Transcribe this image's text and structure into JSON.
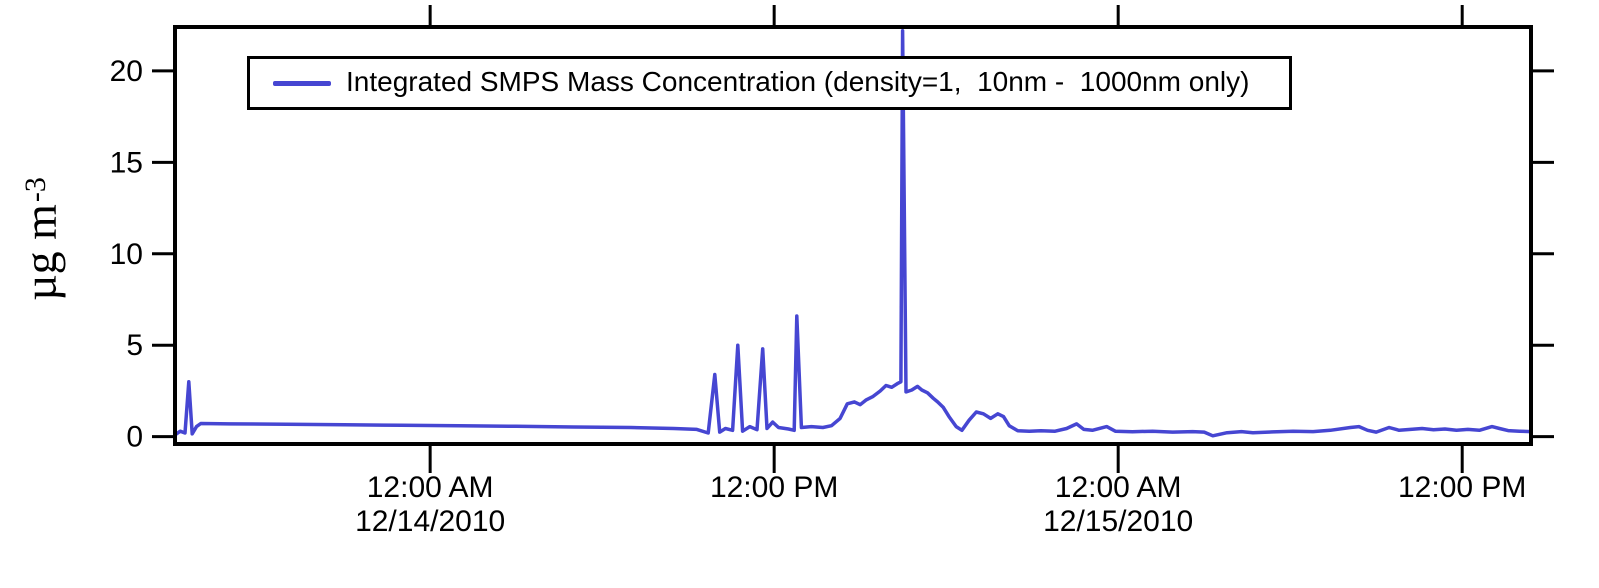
{
  "chart_data": {
    "type": "line",
    "title": "",
    "legend": {
      "label": "Integrated SMPS Mass Concentration (density=1,  10nm -  1000nm only)",
      "position": "top-inside",
      "border": true
    },
    "line_color": "#4646D2",
    "axis_color": "#000000",
    "background_color": "#FFFFFF",
    "grid": false,
    "ylabel": {
      "text": "µg m",
      "exponent": "-3"
    },
    "ylim": [
      -0.4,
      22.4
    ],
    "yticks": [
      0,
      5,
      10,
      15,
      20
    ],
    "x_unit": "hours since 12/14/2010 12:00 AM",
    "xlim_hours": [
      -8.9,
      38.4
    ],
    "xticks": [
      {
        "hours": 0,
        "time": "12:00 AM",
        "date": "12/14/2010"
      },
      {
        "hours": 12,
        "time": "12:00 PM",
        "date": ""
      },
      {
        "hours": 24,
        "time": "12:00 AM",
        "date": "12/15/2010"
      },
      {
        "hours": 36,
        "time": "12:00 PM",
        "date": ""
      }
    ],
    "mirror_axes": true,
    "points": [
      [
        -8.9,
        0.1
      ],
      [
        -8.72,
        0.3
      ],
      [
        -8.55,
        0.2
      ],
      [
        -8.42,
        3.0
      ],
      [
        -8.3,
        0.15
      ],
      [
        -8.15,
        0.55
      ],
      [
        -8.0,
        0.72
      ],
      [
        -7.0,
        0.7
      ],
      [
        -5.0,
        0.68
      ],
      [
        -3.0,
        0.65
      ],
      [
        -1.0,
        0.62
      ],
      [
        1.0,
        0.6
      ],
      [
        3.0,
        0.57
      ],
      [
        5.0,
        0.53
      ],
      [
        7.0,
        0.5
      ],
      [
        8.5,
        0.45
      ],
      [
        9.3,
        0.4
      ],
      [
        9.7,
        0.2
      ],
      [
        9.93,
        3.4
      ],
      [
        10.1,
        0.25
      ],
      [
        10.3,
        0.45
      ],
      [
        10.55,
        0.35
      ],
      [
        10.73,
        5.0
      ],
      [
        10.9,
        0.3
      ],
      [
        11.15,
        0.55
      ],
      [
        11.4,
        0.38
      ],
      [
        11.6,
        4.8
      ],
      [
        11.75,
        0.45
      ],
      [
        11.95,
        0.8
      ],
      [
        12.15,
        0.5
      ],
      [
        12.5,
        0.42
      ],
      [
        12.7,
        0.35
      ],
      [
        12.79,
        6.6
      ],
      [
        12.95,
        0.5
      ],
      [
        13.3,
        0.55
      ],
      [
        13.7,
        0.5
      ],
      [
        14.0,
        0.6
      ],
      [
        14.3,
        1.0
      ],
      [
        14.55,
        1.8
      ],
      [
        14.8,
        1.9
      ],
      [
        15.0,
        1.75
      ],
      [
        15.2,
        2.0
      ],
      [
        15.45,
        2.2
      ],
      [
        15.7,
        2.5
      ],
      [
        15.9,
        2.8
      ],
      [
        16.1,
        2.7
      ],
      [
        16.3,
        2.9
      ],
      [
        16.42,
        3.0
      ],
      [
        16.48,
        22.2
      ],
      [
        16.6,
        2.45
      ],
      [
        16.8,
        2.55
      ],
      [
        17.0,
        2.75
      ],
      [
        17.15,
        2.55
      ],
      [
        17.35,
        2.4
      ],
      [
        17.55,
        2.1
      ],
      [
        17.7,
        1.9
      ],
      [
        17.9,
        1.6
      ],
      [
        18.1,
        1.1
      ],
      [
        18.35,
        0.55
      ],
      [
        18.55,
        0.35
      ],
      [
        18.8,
        0.9
      ],
      [
        19.05,
        1.35
      ],
      [
        19.3,
        1.25
      ],
      [
        19.55,
        1.0
      ],
      [
        19.8,
        1.25
      ],
      [
        20.0,
        1.1
      ],
      [
        20.2,
        0.6
      ],
      [
        20.5,
        0.32
      ],
      [
        20.9,
        0.3
      ],
      [
        21.3,
        0.32
      ],
      [
        21.8,
        0.3
      ],
      [
        22.2,
        0.45
      ],
      [
        22.55,
        0.7
      ],
      [
        22.8,
        0.4
      ],
      [
        23.1,
        0.35
      ],
      [
        23.6,
        0.55
      ],
      [
        23.9,
        0.3
      ],
      [
        24.5,
        0.27
      ],
      [
        25.2,
        0.3
      ],
      [
        25.9,
        0.25
      ],
      [
        26.6,
        0.28
      ],
      [
        27.0,
        0.25
      ],
      [
        27.3,
        0.05
      ],
      [
        27.8,
        0.22
      ],
      [
        28.3,
        0.28
      ],
      [
        28.7,
        0.22
      ],
      [
        29.4,
        0.26
      ],
      [
        30.1,
        0.3
      ],
      [
        30.8,
        0.28
      ],
      [
        31.4,
        0.35
      ],
      [
        32.1,
        0.5
      ],
      [
        32.4,
        0.55
      ],
      [
        32.7,
        0.35
      ],
      [
        33.0,
        0.25
      ],
      [
        33.45,
        0.5
      ],
      [
        33.8,
        0.35
      ],
      [
        34.2,
        0.4
      ],
      [
        34.6,
        0.45
      ],
      [
        35.0,
        0.38
      ],
      [
        35.4,
        0.42
      ],
      [
        35.8,
        0.35
      ],
      [
        36.2,
        0.4
      ],
      [
        36.6,
        0.35
      ],
      [
        37.04,
        0.55
      ],
      [
        37.3,
        0.45
      ],
      [
        37.6,
        0.33
      ],
      [
        38.0,
        0.3
      ],
      [
        38.4,
        0.28
      ]
    ]
  }
}
